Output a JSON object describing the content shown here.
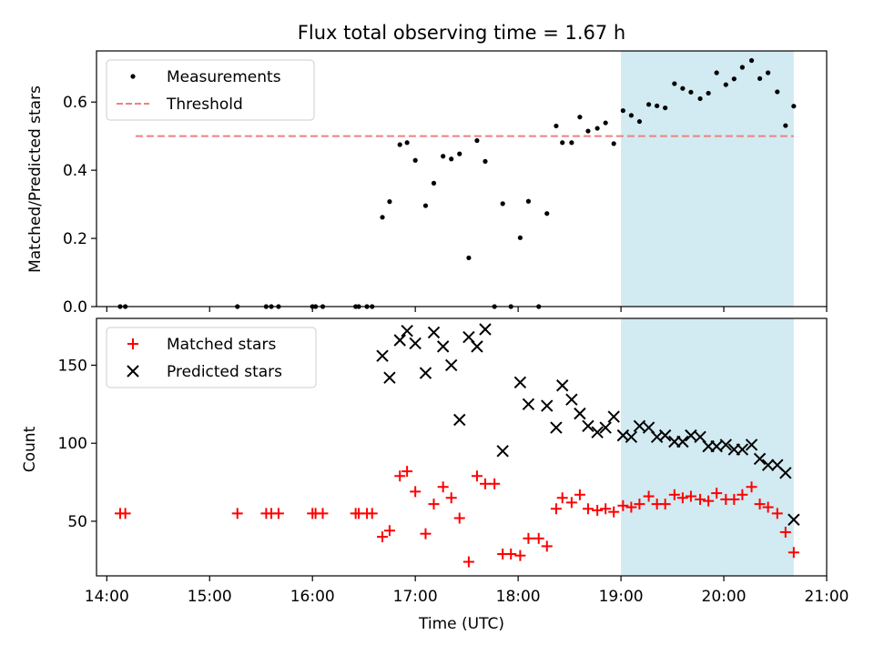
{
  "chart_data": {
    "title": "Flux total observing time = 1.67 h",
    "xlabel": "Time (UTC)",
    "x_unit": "hours (UTC)",
    "xlim": [
      13.9,
      21.0
    ],
    "xticks": [
      {
        "v": 14,
        "label": "14:00"
      },
      {
        "v": 15,
        "label": "15:00"
      },
      {
        "v": 16,
        "label": "16:00"
      },
      {
        "v": 17,
        "label": "17:00"
      },
      {
        "v": 18,
        "label": "18:00"
      },
      {
        "v": 19,
        "label": "19:00"
      },
      {
        "v": 20,
        "label": "20:00"
      },
      {
        "v": 21,
        "label": "21:00"
      }
    ],
    "highlight": {
      "x0": 19.0,
      "x1": 20.68,
      "color": "#add8e6"
    },
    "panels": [
      {
        "type": "scatter",
        "ylabel": "Matched/Predicted stars",
        "ylim": [
          0,
          0.75
        ],
        "yticks": [
          {
            "v": 0.0,
            "label": "0.0"
          },
          {
            "v": 0.2,
            "label": "0.2"
          },
          {
            "v": 0.4,
            "label": "0.4"
          },
          {
            "v": 0.6,
            "label": "0.6"
          }
        ],
        "threshold": {
          "x0": 14.28,
          "x1": 20.68,
          "y": 0.5,
          "color": "#f08080"
        },
        "legend": [
          {
            "label": "Measurements",
            "marker": "dot",
            "color": "#000000"
          },
          {
            "label": "Threshold",
            "marker": "dashed-line",
            "color": "#f08080"
          }
        ],
        "series": [
          {
            "name": "Measurements",
            "marker": "dot",
            "color": "#000000",
            "x": [
              14.13,
              14.18,
              15.27,
              15.55,
              15.6,
              15.67,
              16.0,
              16.03,
              16.1,
              16.42,
              16.45,
              16.53,
              16.58,
              16.68,
              16.75,
              16.85,
              16.92,
              17.0,
              17.1,
              17.18,
              17.27,
              17.35,
              17.43,
              17.52,
              17.6,
              17.68,
              17.77,
              17.85,
              17.93,
              18.02,
              18.1,
              18.2,
              18.28,
              18.37,
              18.43,
              18.52,
              18.6,
              18.68,
              18.77,
              18.85,
              18.93,
              19.02,
              19.1,
              19.18,
              19.27,
              19.35,
              19.43,
              19.52,
              19.6,
              19.68,
              19.77,
              19.85,
              19.93,
              20.02,
              20.1,
              20.18,
              20.27,
              20.35,
              20.43,
              20.52,
              20.6,
              20.68
            ],
            "y": [
              0,
              0,
              0,
              0,
              0,
              0,
              0,
              0,
              0,
              0,
              0,
              0,
              0,
              0.262,
              0.308,
              0.475,
              0.481,
              0.429,
              0.296,
              0.362,
              0.441,
              0.433,
              0.448,
              0.143,
              0.487,
              0.426,
              0,
              0.302,
              0,
              0.202,
              0.309,
              0,
              0.273,
              0.53,
              0.481,
              0.481,
              0.556,
              0.515,
              0.523,
              0.539,
              0.478,
              0.575,
              0.561,
              0.543,
              0.593,
              0.589,
              0.583,
              0.654,
              0.64,
              0.629,
              0.61,
              0.626,
              0.686,
              0.651,
              0.668,
              0.702,
              0.722,
              0.669,
              0.686,
              0.63,
              0.531,
              0.588
            ]
          }
        ]
      },
      {
        "type": "scatter",
        "ylabel": "Count",
        "ylim": [
          15,
          180
        ],
        "yticks": [
          {
            "v": 50,
            "label": "50"
          },
          {
            "v": 100,
            "label": "100"
          },
          {
            "v": 150,
            "label": "150"
          }
        ],
        "legend": [
          {
            "label": "Matched stars",
            "marker": "plus",
            "color": "#ff0000"
          },
          {
            "label": "Predicted stars",
            "marker": "x",
            "color": "#000000"
          }
        ],
        "series": [
          {
            "name": "Matched stars",
            "marker": "plus",
            "color": "#ff0000",
            "x": [
              14.13,
              14.18,
              15.27,
              15.55,
              15.6,
              15.67,
              16.0,
              16.03,
              16.1,
              16.42,
              16.45,
              16.53,
              16.58,
              16.68,
              16.75,
              16.85,
              16.92,
              17.0,
              17.1,
              17.18,
              17.27,
              17.35,
              17.43,
              17.52,
              17.6,
              17.68,
              17.77,
              17.85,
              17.93,
              18.02,
              18.1,
              18.2,
              18.28,
              18.37,
              18.43,
              18.52,
              18.6,
              18.68,
              18.77,
              18.85,
              18.93,
              19.02,
              19.1,
              19.18,
              19.27,
              19.35,
              19.43,
              19.52,
              19.6,
              19.68,
              19.77,
              19.85,
              19.93,
              20.02,
              20.1,
              20.18,
              20.27,
              20.35,
              20.43,
              20.52,
              20.6,
              20.68
            ],
            "y": [
              55,
              55,
              55,
              55,
              55,
              55,
              55,
              55,
              55,
              55,
              55,
              55,
              55,
              40,
              44,
              79,
              82,
              69,
              42,
              61,
              72,
              65,
              52,
              24,
              79,
              74,
              74,
              29,
              29,
              28,
              39,
              39,
              34,
              58,
              65,
              62,
              67,
              58,
              57,
              58,
              56,
              60,
              59,
              61,
              66,
              61,
              61,
              67,
              65,
              66,
              64,
              63,
              68,
              64,
              64,
              67,
              72,
              61,
              59,
              55,
              43,
              30
            ]
          },
          {
            "name": "Predicted stars",
            "marker": "x",
            "color": "#000000",
            "x": [
              16.68,
              16.75,
              16.85,
              16.92,
              17.0,
              17.1,
              17.18,
              17.27,
              17.35,
              17.43,
              17.52,
              17.6,
              17.68,
              17.85,
              18.02,
              18.1,
              18.28,
              18.37,
              18.43,
              18.52,
              18.6,
              18.68,
              18.77,
              18.85,
              18.93,
              19.02,
              19.1,
              19.18,
              19.27,
              19.35,
              19.43,
              19.52,
              19.6,
              19.68,
              19.77,
              19.85,
              19.93,
              20.02,
              20.1,
              20.18,
              20.27,
              20.35,
              20.43,
              20.52,
              20.6,
              20.68
            ],
            "y": [
              156,
              142,
              166,
              172,
              164,
              145,
              171,
              162,
              150,
              115,
              168,
              162,
              173,
              95,
              139,
              125,
              124,
              110,
              137,
              128,
              119,
              111,
              107,
              110,
              117,
              105,
              104,
              111,
              110,
              104,
              105,
              101,
              101,
              105,
              104,
              98,
              98,
              99,
              96,
              96,
              99,
              90,
              86,
              86,
              81,
              51
            ]
          }
        ]
      }
    ]
  }
}
